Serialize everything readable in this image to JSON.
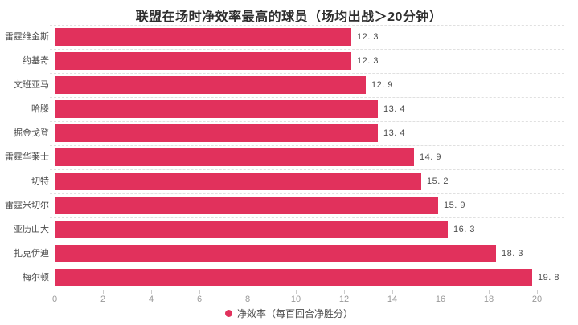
{
  "title": "联盟在场时净效率最高的球员（场均出战＞20分钟）",
  "legend": {
    "label": "净效率（每百回合净胜分）",
    "marker": "circle",
    "color": "#E1315C"
  },
  "colors": {
    "bar": "#E1315C",
    "grid": "#E0E0E0",
    "axis": "#CCCCCC",
    "tick_label": "#999999",
    "text_label": "#4D4D4D",
    "title": "#2E2E2E",
    "background": "#FFFFFF"
  },
  "chart_data": {
    "type": "bar",
    "orientation": "horizontal",
    "title": "联盟在场时净效率最高的球员（场均出战＞20分钟）",
    "series_name": "净效率（每百回合净胜分）",
    "categories": [
      "雷霆维金斯",
      "约基奇",
      "文班亚马",
      "哈滕",
      "掘金戈登",
      "雷霆华莱士",
      "切特",
      "雷霆米切尔",
      "亚历山大",
      "扎克伊迪",
      "梅尔顿"
    ],
    "values": [
      12.3,
      12.3,
      12.9,
      13.4,
      13.4,
      14.9,
      15.2,
      15.9,
      16.3,
      18.3,
      19.8
    ],
    "value_labels": [
      "12. 3",
      "12. 3",
      "12. 9",
      "13. 4",
      "13. 4",
      "14. 9",
      "15. 2",
      "15. 9",
      "16. 3",
      "18. 3",
      "19. 8"
    ],
    "x_axis": {
      "tick_labels": [
        "0",
        "2",
        "4",
        "6",
        "8",
        "10",
        "12",
        "14",
        "16",
        "18",
        "20"
      ],
      "tick_values": [
        0,
        2,
        4,
        6,
        8,
        10,
        12,
        14,
        16,
        18,
        20
      ],
      "min": 0,
      "max": 21.1
    },
    "xlabel": "",
    "ylabel": "",
    "grid": "horizontal-dashed",
    "legend_position": "bottom-center",
    "bar_color": "#E1315C",
    "sort_order": "ascending-top-to-bottom-by-row? no: values increase downward"
  }
}
